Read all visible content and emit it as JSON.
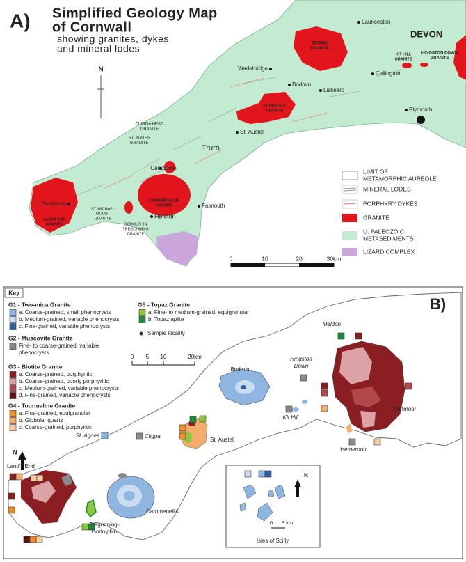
{
  "panel_a": {
    "label": "A)",
    "title": [
      "Simplified Geology Map",
      "of Cornwall",
      "showing granites, dykes",
      "and mineral lodes"
    ],
    "north": "N",
    "places": [
      [
        "Launceston"
      ],
      [
        "DEVON"
      ],
      [
        "BODMIN",
        "GRANITE"
      ],
      [
        "Wadebridge"
      ],
      [
        "KIT HILL",
        "GRANITE"
      ],
      [
        "HINGSTON DOWN",
        "GRANITE"
      ],
      [
        "Callington"
      ],
      [
        "Bodmin"
      ],
      [
        "Liskeard"
      ],
      [
        "ST AUSTELL",
        "GRANITE"
      ],
      [
        "Plymouth"
      ],
      [
        "CLIGGA HEAD",
        "GRANITE"
      ],
      [
        "ST. AGNES",
        "GRANITE"
      ],
      [
        "St. Austell"
      ],
      [
        "Truro"
      ],
      [
        "Camborne"
      ],
      [
        "CARNMENELLIS",
        "GRANITE"
      ],
      [
        "Falmouth"
      ],
      [
        "Penzance"
      ],
      [
        "ST. MICHAEL",
        "MOUNT",
        "GRANITE"
      ],
      [
        "LANDS END",
        "GRANITE"
      ],
      [
        "Helston"
      ],
      [
        "GODOLPHIN",
        "TREGONNING",
        "GRANITE"
      ]
    ],
    "legend": [
      [
        "LIMIT OF",
        "METAMORPHIC AUREOLE"
      ],
      [
        "MINERAL LODES"
      ],
      [
        "PORPHYRY DYKES"
      ],
      [
        "GRANITE"
      ],
      [
        "U. PALEOZOIC",
        "METASEDIMENTS"
      ],
      [
        "LIZARD COMPLEX"
      ]
    ],
    "scale": [
      "0",
      "10",
      "20",
      "30km"
    ]
  },
  "panel_b": {
    "label": "B)",
    "key_title": "Key",
    "groups": [
      {
        "title": "G1 - Two-mica Granite",
        "items": [
          {
            "lines": [
              "a. Coarse-grained, small phenocrysts"
            ],
            "color": "#8fb6e0"
          },
          {
            "lines": [
              "b. Medium-grained, variable phenocrysts"
            ],
            "color": "#c9dcf1"
          },
          {
            "lines": [
              "c. Fine-grained, variable phenocrysts"
            ],
            "color": "#2f5f9f"
          }
        ]
      },
      {
        "title": "G2 - Muscovite Granite",
        "items": [
          {
            "lines": [
              "Fine- to coarse-grained, variable",
              "phenocrysts"
            ],
            "color": "#8a8a8a"
          }
        ]
      },
      {
        "title": "G3 - Biotite Granite",
        "items": [
          {
            "lines": [
              "a. Coarse-grained, porphyritic"
            ],
            "color": "#8b1e22"
          },
          {
            "lines": [
              "b. Coarse-grained, poorly porphyritic"
            ],
            "color": "#dba3a6"
          },
          {
            "lines": [
              "c. Medium-grained, variable phenocrysts"
            ],
            "color": "#b3484b"
          },
          {
            "lines": [
              "d. Fine-grained, variable phenocrysts"
            ],
            "color": "#5a1214"
          }
        ]
      },
      {
        "title": "G4 - Tourmaline Granite",
        "items": [
          {
            "lines": [
              "a. Fine-grained, equigranular"
            ],
            "color": "#f08c2a"
          },
          {
            "lines": [
              "b. Globular quartz"
            ],
            "color": "#f4ad6a"
          },
          {
            "lines": [
              "c. Coarse-grained, porphyritic"
            ],
            "color": "#f8caa2"
          }
        ]
      },
      {
        "title": "G5 - Topaz Granite",
        "items": [
          {
            "lines": [
              "a. Fine- to medium-grained, equigranular"
            ],
            "color": "#8cc63f"
          },
          {
            "lines": [
              "b. Topaz aplite"
            ],
            "color": "#1e8c3c"
          }
        ]
      }
    ],
    "sample_locality": "Sample locality",
    "scale": [
      "0",
      "5",
      "10",
      "20km"
    ],
    "north": "N",
    "places": [
      [
        "Bodmin"
      ],
      [
        "Hingston",
        "Down"
      ],
      [
        "Kit Hill"
      ],
      [
        "Meldon"
      ],
      [
        "Dartmoor"
      ],
      [
        "Hemerdon"
      ],
      [
        "St. Austell"
      ],
      [
        "St. Agnes"
      ],
      [
        "Cligga"
      ],
      [
        "Land's End"
      ],
      [
        "Carnmenellis"
      ],
      [
        "Tregonning-",
        "Godolphin"
      ]
    ],
    "inset": {
      "title": "Isles of Scilly",
      "north": "N",
      "scale": [
        "0",
        "3 km"
      ]
    }
  }
}
